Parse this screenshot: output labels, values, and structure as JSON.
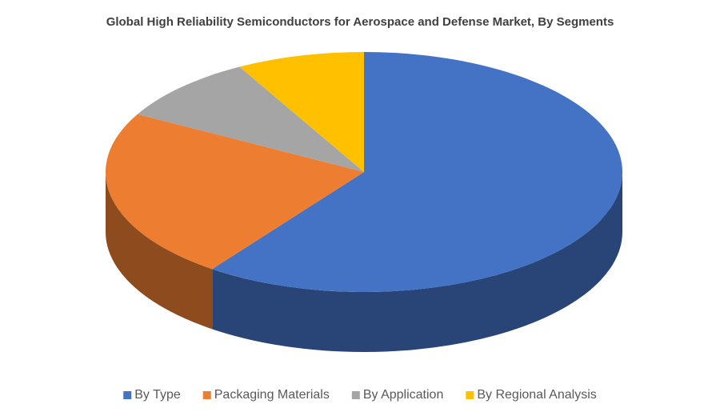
{
  "chart_data": {
    "type": "pie3d",
    "title": "Global High Reliability Semiconductors for Aerospace and Defense Market, By Segments",
    "categories": [
      "By Type",
      "Packaging Materials",
      "By Application",
      "By Regional Analysis"
    ],
    "values": [
      60,
      23,
      9,
      8
    ],
    "colors": [
      "#4472c4",
      "#ed7d31",
      "#a5a5a5",
      "#ffc000"
    ],
    "legend": "bottom"
  }
}
